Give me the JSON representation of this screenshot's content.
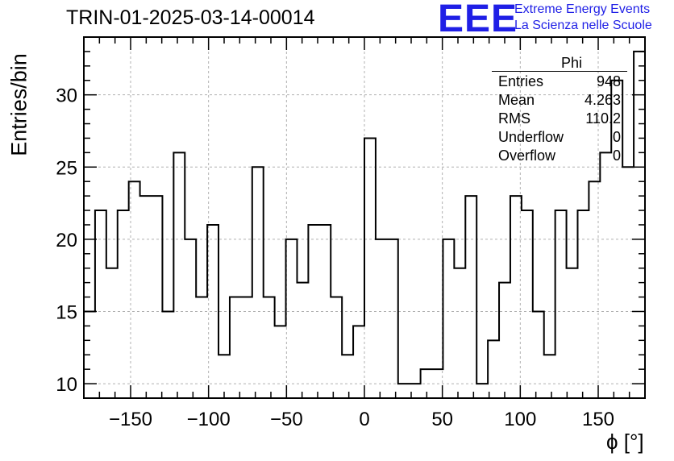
{
  "header": {
    "run_title": "TRIN-01-2025-03-14-00014",
    "logo_mark": "EEE",
    "logo_line1": "Extreme Energy Events",
    "logo_line2": "La Scienza nelle Scuole"
  },
  "stats_box": {
    "title": "Phi",
    "rows": [
      {
        "key": "Entries",
        "value": "948"
      },
      {
        "key": "Mean",
        "value": "4.263"
      },
      {
        "key": "RMS",
        "value": "110.2"
      },
      {
        "key": "Underflow",
        "value": "0"
      },
      {
        "key": "Overflow",
        "value": "0"
      }
    ]
  },
  "chart_data": {
    "type": "histogram",
    "title": "TRIN-01-2025-03-14-00014",
    "xlabel": "ϕ [°]",
    "ylabel": "Entries/bin",
    "xlim": [
      -180,
      180
    ],
    "ylim": [
      9,
      34
    ],
    "bin_width": 7.2,
    "bin_edges_start": -180,
    "values": [
      15,
      22,
      18,
      22,
      24,
      23,
      23,
      15,
      26,
      20,
      16,
      21,
      12,
      16,
      16,
      25,
      16,
      14,
      20,
      17,
      21,
      21,
      16,
      12,
      14,
      27,
      20,
      20,
      10,
      10,
      11,
      11,
      20,
      18,
      23,
      10,
      13,
      17,
      23,
      22,
      15,
      12,
      22,
      18,
      22,
      24,
      26,
      31,
      25,
      33
    ],
    "xticks": [
      -150,
      -100,
      -50,
      0,
      50,
      100,
      150
    ],
    "xtick_labels": [
      "−150",
      "−100",
      "−50",
      "0",
      "50",
      "100",
      "150"
    ],
    "yticks": [
      10,
      15,
      20,
      25,
      30
    ],
    "ytick_labels": [
      "10",
      "15",
      "20",
      "25",
      "30"
    ],
    "grid": true,
    "line_color": "#000000",
    "grid_color": "#b0b0b0"
  }
}
